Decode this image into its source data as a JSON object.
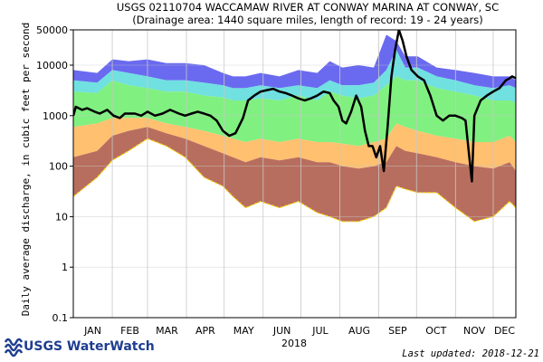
{
  "chart_data": {
    "type": "area",
    "title": "USGS 02110704 WACCAMAW RIVER AT CONWAY MARINA AT CONWAY, SC",
    "subtitle": "(Drainage area: 1440 square miles, length of record: 19 - 24 years)",
    "ylabel": "Daily average discharge, in cubic feet per second",
    "xlabel": "2018",
    "y_scale": "log",
    "ylim": [
      0.1,
      50000
    ],
    "y_ticks": [
      0.1,
      1,
      10,
      100,
      1000,
      10000,
      50000
    ],
    "y_tick_labels": [
      "0.1",
      "1",
      "10",
      "100",
      "1000",
      "10000",
      "50000"
    ],
    "x_range_days": [
      1,
      353
    ],
    "months": [
      "JAN",
      "FEB",
      "MAR",
      "APR",
      "MAY",
      "JUN",
      "JUL",
      "AUG",
      "SEP",
      "OCT",
      "NOV",
      "DEC"
    ],
    "grid": true,
    "legend": "none",
    "colors": {
      "max_band": "#6a6af0",
      "p90_band": "#70e0e0",
      "p75_band": "#80f080",
      "p25_band": "#ffc070",
      "p10_band": "#b86e5e",
      "minimum": "#ffd700",
      "current": "#000000"
    },
    "band_days": [
      1,
      20,
      32,
      45,
      60,
      75,
      90,
      105,
      120,
      128,
      138,
      150,
      165,
      180,
      195,
      205,
      215,
      228,
      240,
      250,
      258,
      265,
      275,
      290,
      305,
      320,
      335,
      348,
      353
    ],
    "bands": {
      "max": [
        8000,
        7000,
        13000,
        12000,
        13000,
        11000,
        11000,
        10000,
        7000,
        6000,
        6000,
        7000,
        6000,
        8000,
        7000,
        12000,
        9000,
        10000,
        9000,
        40000,
        30000,
        15000,
        15000,
        9000,
        8000,
        7000,
        6000,
        6000,
        5000
      ],
      "p90": [
        5000,
        4500,
        8000,
        7000,
        6000,
        5000,
        5000,
        4500,
        4000,
        3500,
        3500,
        4000,
        3500,
        4000,
        3500,
        5000,
        4000,
        4000,
        4500,
        8000,
        20000,
        9000,
        9000,
        6000,
        5000,
        4000,
        3500,
        4000,
        3500
      ],
      "p75": [
        3000,
        2800,
        5000,
        4000,
        3500,
        3000,
        3000,
        2500,
        2300,
        2000,
        2000,
        2200,
        2000,
        2500,
        2000,
        3000,
        2500,
        2200,
        2500,
        4000,
        6000,
        5000,
        5000,
        3500,
        3000,
        2500,
        2000,
        2000,
        1800
      ],
      "p25": [
        600,
        700,
        900,
        900,
        900,
        700,
        600,
        500,
        400,
        350,
        300,
        350,
        300,
        350,
        300,
        300,
        280,
        250,
        300,
        350,
        700,
        600,
        500,
        400,
        350,
        300,
        300,
        400,
        300
      ],
      "p10": [
        150,
        200,
        400,
        500,
        600,
        450,
        350,
        250,
        180,
        150,
        120,
        150,
        130,
        150,
        120,
        120,
        100,
        90,
        100,
        120,
        250,
        200,
        180,
        150,
        120,
        100,
        90,
        120,
        80
      ],
      "min": [
        25,
        60,
        130,
        200,
        350,
        250,
        150,
        60,
        40,
        25,
        15,
        20,
        15,
        20,
        12,
        10,
        8,
        8,
        10,
        15,
        40,
        35,
        30,
        30,
        15,
        8,
        10,
        20,
        15
      ]
    },
    "series": [
      {
        "name": "",
        "days": [
          1,
          3,
          8,
          12,
          18,
          22,
          28,
          33,
          38,
          42,
          50,
          55,
          60,
          66,
          72,
          78,
          85,
          90,
          95,
          100,
          105,
          110,
          115,
          120,
          125,
          130,
          136,
          140,
          145,
          150,
          155,
          160,
          165,
          170,
          175,
          180,
          185,
          190,
          195,
          200,
          205,
          208,
          212,
          215,
          218,
          222,
          226,
          230,
          233,
          236,
          239,
          242,
          245,
          248,
          251,
          254,
          257,
          260,
          263,
          266,
          270,
          275,
          280,
          285,
          290,
          295,
          300,
          305,
          310,
          313,
          316,
          318,
          320,
          325,
          330,
          335,
          340,
          345,
          348,
          350,
          353
        ],
        "values": [
          1000,
          1500,
          1300,
          1400,
          1200,
          1100,
          1300,
          1000,
          900,
          1100,
          1100,
          1000,
          1200,
          1000,
          1100,
          1300,
          1100,
          1000,
          1100,
          1200,
          1100,
          1000,
          800,
          500,
          400,
          450,
          900,
          2000,
          2500,
          3000,
          3200,
          3400,
          3000,
          2800,
          2500,
          2200,
          2000,
          2200,
          2500,
          3000,
          2800,
          2000,
          1500,
          800,
          700,
          1200,
          2500,
          1500,
          500,
          250,
          250,
          150,
          250,
          80,
          600,
          6000,
          20000,
          50000,
          30000,
          15000,
          8000,
          6000,
          5000,
          2500,
          1000,
          800,
          1000,
          1000,
          900,
          800,
          150,
          50,
          1000,
          2000,
          2500,
          3000,
          3500,
          5000,
          5500,
          6000,
          5500
        ]
      }
    ]
  },
  "footer": {
    "logo_text": "USGS WaterWatch",
    "last_updated": "Last updated: 2018-12-21"
  }
}
